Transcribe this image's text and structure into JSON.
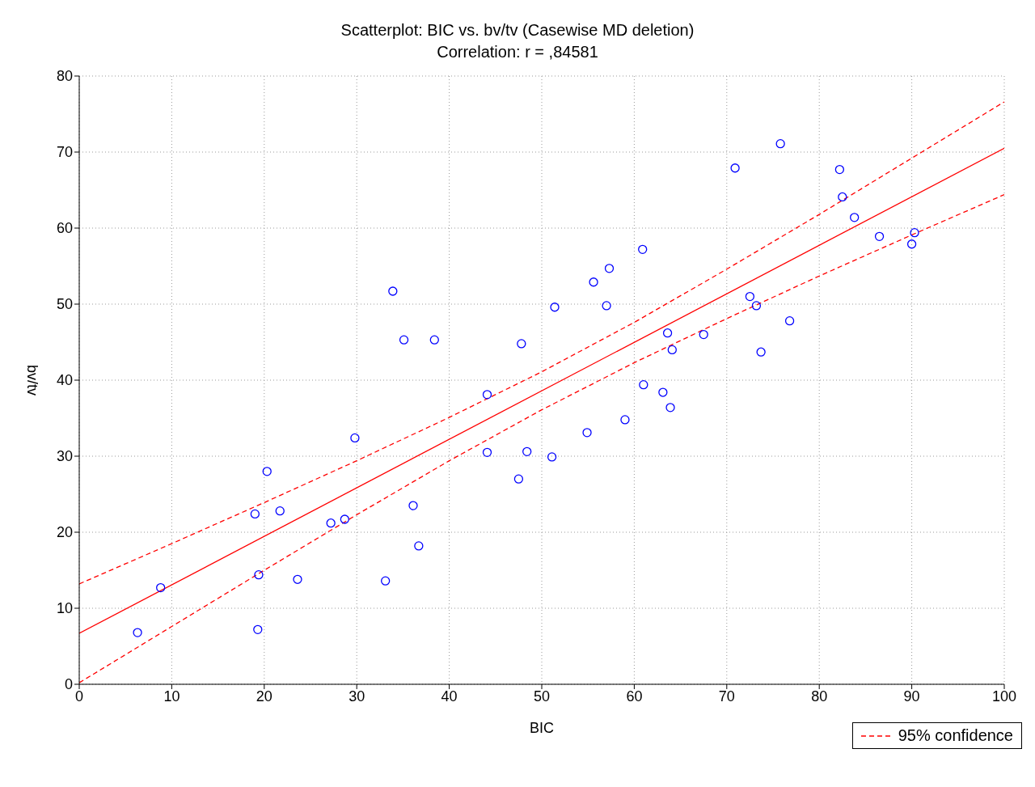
{
  "chart_data": {
    "type": "scatter",
    "title": "Scatterplot: BIC vs. bv/tv (Casewise MD deletion)",
    "subtitle": "Correlation: r = ,84581",
    "xlabel": "BIC",
    "ylabel": "bv/tv",
    "xlim": [
      0,
      100
    ],
    "xticks": [
      0,
      10,
      20,
      30,
      40,
      50,
      60,
      70,
      80,
      90,
      100
    ],
    "ylim": [
      0,
      80
    ],
    "yticks": [
      0,
      10,
      20,
      30,
      40,
      50,
      60,
      70,
      80
    ],
    "grid": true,
    "legend": "bottom right",
    "series": [
      {
        "color": "#0000ff",
        "marker": "circle",
        "x": [
          6.3,
          8.8,
          19.0,
          19.4,
          19.3,
          20.3,
          21.7,
          23.6,
          27.2,
          28.7,
          29.8,
          33.1,
          33.9,
          35.1,
          36.1,
          36.7,
          38.4,
          44.1,
          44.1,
          47.5,
          48.4,
          47.8,
          51.1,
          51.4,
          54.9,
          55.6,
          57.0,
          57.3,
          59.0,
          60.9,
          61.0,
          63.1,
          63.6,
          63.9,
          64.1,
          67.5,
          70.9,
          72.5,
          73.2,
          73.7,
          75.8,
          76.8,
          82.2,
          82.5,
          83.8,
          86.5,
          90.0,
          90.3
        ],
        "values": [
          6.8,
          12.7,
          22.4,
          14.4,
          7.2,
          28.0,
          22.8,
          13.8,
          21.2,
          21.7,
          32.4,
          13.6,
          51.7,
          45.3,
          23.5,
          18.2,
          45.3,
          38.1,
          30.5,
          27.0,
          30.6,
          44.8,
          29.9,
          49.6,
          33.1,
          52.9,
          49.8,
          54.7,
          34.8,
          57.2,
          39.4,
          38.4,
          46.2,
          36.4,
          44.0,
          46.0,
          67.9,
          51.0,
          49.8,
          43.7,
          71.1,
          47.8,
          67.7,
          64.1,
          61.4,
          58.9,
          57.9,
          59.4
        ]
      },
      {
        "type": "line",
        "color": "#ff0000",
        "line_style": "solid",
        "x": [
          0,
          100
        ],
        "values": [
          6.7,
          70.5
        ]
      },
      {
        "type": "line",
        "name": "95% confidence",
        "color": "#ff0000",
        "line_style": "dashed",
        "x": [
          0,
          10,
          20,
          30,
          40,
          50,
          60,
          70,
          80,
          90,
          100
        ],
        "values": [
          13.2,
          18.5,
          23.9,
          29.4,
          35.1,
          41.1,
          47.6,
          54.6,
          61.8,
          69.2,
          76.6
        ]
      },
      {
        "type": "line",
        "color": "#ff0000",
        "line_style": "dashed",
        "x": [
          0,
          10,
          20,
          30,
          40,
          50,
          60,
          70,
          80,
          90,
          100
        ],
        "values": [
          0.2,
          7.6,
          15.0,
          22.3,
          29.4,
          36.1,
          42.3,
          48.1,
          53.7,
          59.1,
          64.4
        ]
      }
    ]
  }
}
